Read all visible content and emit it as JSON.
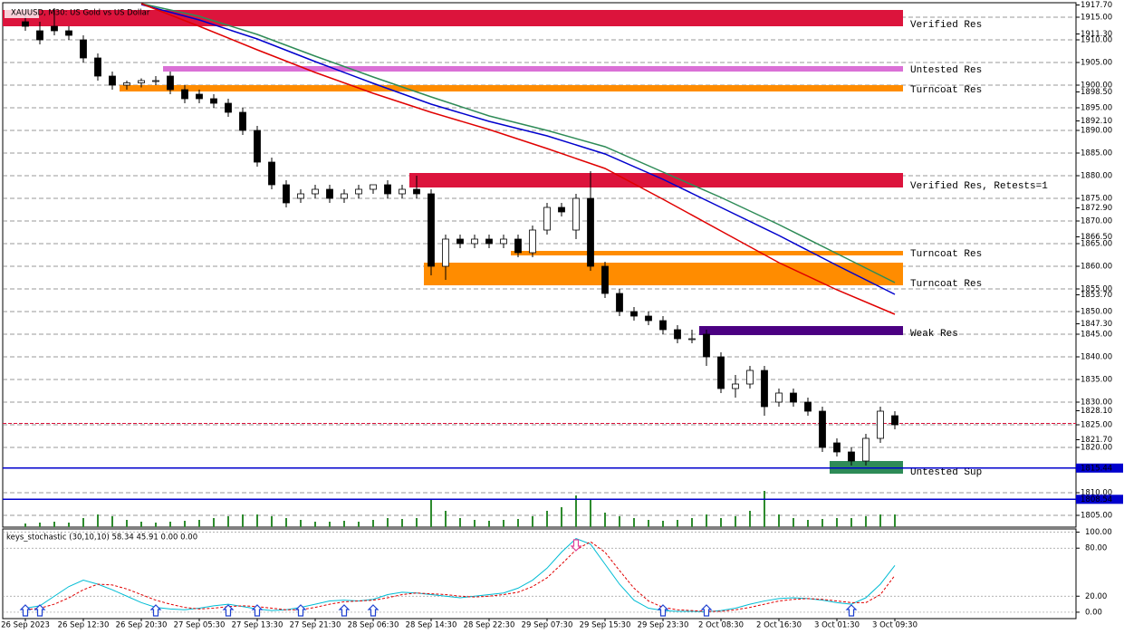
{
  "chart_data": [
    {
      "type": "candlestick",
      "title": "XAUUSD, M30:  US Gold vs US Dollar",
      "categories": [
        "26 Sep 2023",
        null,
        null,
        null,
        "26 Sep 12:30",
        null,
        null,
        null,
        "26 Sep 20:30",
        null,
        null,
        null,
        "27 Sep 05:30",
        null,
        null,
        null,
        "27 Sep 13:30",
        null,
        null,
        null,
        "27 Sep 21:30",
        null,
        null,
        null,
        "28 Sep 06:30",
        null,
        null,
        null,
        "28 Sep 14:30",
        null,
        null,
        null,
        "28 Sep 22:30",
        null,
        null,
        null,
        "29 Sep 07:30",
        null,
        null,
        null,
        "29 Sep 15:30",
        null,
        null,
        null,
        "29 Sep 23:30",
        null,
        null,
        null,
        "2 Oct 08:30",
        null,
        null,
        null,
        "2 Oct 16:30",
        null,
        null,
        null,
        "3 Oct 01:30",
        null,
        null,
        null,
        "3 Oct 09:30"
      ],
      "open": [
        1914,
        1912,
        1913,
        1912,
        1910,
        1906,
        1902,
        1900,
        1900.5,
        1901,
        1902,
        1899,
        1898,
        1897,
        1896,
        1894,
        1890,
        1883,
        1878,
        1875,
        1876,
        1877,
        1875,
        1876,
        1877,
        1878,
        1876,
        1877,
        1876,
        1860,
        1866,
        1865,
        1866,
        1865,
        1866,
        1863,
        1868,
        1873,
        1868,
        1875,
        1860,
        1854,
        1850,
        1849,
        1848,
        1846,
        1844,
        1845,
        1840,
        1833,
        1834,
        1837,
        1830,
        1832,
        1830,
        1828,
        1821,
        1819,
        1817,
        1822,
        1827
      ],
      "high": [
        1916,
        1914,
        1917,
        1913,
        1911,
        1907,
        1903,
        1901,
        1901.5,
        1902,
        1903,
        1900,
        1899,
        1898,
        1897,
        1895,
        1891,
        1884,
        1879,
        1877,
        1878,
        1878,
        1877,
        1878,
        1878,
        1879,
        1878,
        1880,
        1877,
        1867,
        1867,
        1867,
        1867,
        1867,
        1867,
        1869,
        1874,
        1874,
        1876,
        1881,
        1861,
        1855,
        1851,
        1850,
        1849,
        1847,
        1846,
        1846,
        1841,
        1836,
        1838,
        1838,
        1833,
        1833,
        1831,
        1829,
        1822,
        1820,
        1823,
        1829,
        1828
      ],
      "low": [
        1912,
        1909,
        1911,
        1910,
        1905,
        1901,
        1899,
        1899,
        1899.5,
        1900,
        1898,
        1896,
        1896,
        1895,
        1893,
        1889,
        1882,
        1877,
        1873,
        1874,
        1875,
        1874,
        1874,
        1875,
        1876,
        1875,
        1875,
        1875,
        1858,
        1857,
        1864,
        1864,
        1864,
        1864,
        1862,
        1862,
        1867,
        1871,
        1866,
        1859,
        1853,
        1849,
        1848,
        1847,
        1845,
        1843,
        1843,
        1838,
        1832,
        1831,
        1833,
        1827,
        1829,
        1829,
        1827,
        1819,
        1818,
        1816,
        1816,
        1821,
        1824
      ],
      "close": [
        1913,
        1910,
        1912,
        1911,
        1906,
        1902,
        1900,
        1900.5,
        1901,
        1901,
        1899,
        1897,
        1897,
        1896,
        1894,
        1890,
        1883,
        1878,
        1874,
        1876,
        1877,
        1875,
        1876,
        1877,
        1878,
        1876,
        1877,
        1876,
        1860,
        1866,
        1865,
        1866,
        1865,
        1866,
        1863,
        1868,
        1873,
        1872,
        1875,
        1860,
        1854,
        1850,
        1849,
        1848,
        1846,
        1844,
        1844,
        1840,
        1833,
        1834,
        1837,
        1829,
        1832,
        1830,
        1828,
        1820,
        1819,
        1817,
        1822,
        1828,
        1825
      ],
      "ylim": [
        1802.4,
        1918.2
      ],
      "yticks": [
        {
          "value": 1915,
          "label": "1915.00"
        },
        {
          "value": 1910,
          "label": "1910.00"
        },
        {
          "value": 1905,
          "label": "1905.00"
        },
        {
          "value": 1900,
          "label": "1900.00"
        },
        {
          "value": 1895,
          "label": "1895.00"
        },
        {
          "value": 1890,
          "label": "1890.00"
        },
        {
          "value": 1885,
          "label": "1885.00"
        },
        {
          "value": 1880,
          "label": "1880.00"
        },
        {
          "value": 1875,
          "label": "1875.00"
        },
        {
          "value": 1870,
          "label": "1870.00"
        },
        {
          "value": 1865,
          "label": "1865.00"
        },
        {
          "value": 1860,
          "label": "1860.00"
        },
        {
          "value": 1855,
          "label": "1855.00"
        },
        {
          "value": 1850,
          "label": "1850.00"
        },
        {
          "value": 1845,
          "label": "1845.00"
        },
        {
          "value": 1840,
          "label": "1840.00"
        },
        {
          "value": 1835,
          "label": "1835.00"
        },
        {
          "value": 1830,
          "label": "1830.00"
        },
        {
          "value": 1825,
          "label": "1825.00"
        },
        {
          "value": 1820,
          "label": "1820.00"
        },
        {
          "value": 1810,
          "label": "1810.00"
        },
        {
          "value": 1805,
          "label": "1805.00"
        }
      ],
      "price_labels": [
        {
          "value": 1917.7,
          "label": "1917.70"
        },
        {
          "value": 1911.3,
          "label": "1911.30"
        },
        {
          "value": 1898.5,
          "label": "1898.50"
        },
        {
          "value": 1892.1,
          "label": "1892.10"
        },
        {
          "value": 1872.9,
          "label": "1872.90"
        },
        {
          "value": 1866.5,
          "label": "1866.50"
        },
        {
          "value": 1853.7,
          "label": "1853.70"
        },
        {
          "value": 1847.3,
          "label": "1847.30"
        },
        {
          "value": 1828.1,
          "label": "1828.10"
        },
        {
          "value": 1821.7,
          "label": "1821.70"
        }
      ],
      "grid": true,
      "zones": [
        {
          "label": "Verified Res",
          "top": 1916.6,
          "bottom": 1913.0,
          "start": -1.5,
          "color": "#dc143c"
        },
        {
          "label": "Untested Res",
          "top": 1904.2,
          "bottom": 1903.0,
          "start": 10,
          "color": "#da70d6"
        },
        {
          "label": "Turncoat Res",
          "top": 1900.0,
          "bottom": 1898.6,
          "start": 7,
          "color": "#ff8c00"
        },
        {
          "label": "Verified Res, Retests=1",
          "top": 1880.6,
          "bottom": 1877.4,
          "start": 27,
          "color": "#dc143c"
        },
        {
          "label": "Turncoat Res",
          "top": 1863.4,
          "bottom": 1862.4,
          "start": 34,
          "color": "#ff8c00"
        },
        {
          "label": "Turncoat Res",
          "top": 1860.8,
          "bottom": 1855.8,
          "start": 28,
          "color": "#ff8c00"
        },
        {
          "label": "Weak Res",
          "top": 1846.8,
          "bottom": 1844.8,
          "start": 47,
          "color": "#4b0082"
        },
        {
          "label": "Untested Sup",
          "top": 1817.0,
          "bottom": 1814.2,
          "start": 56,
          "color": "#2e8b57"
        }
      ],
      "levels": [
        {
          "value": 1825.3,
          "color": "#dc143c"
        },
        {
          "value": 1815.44,
          "color": "#0000cd"
        },
        {
          "value": 1808.54,
          "color": "#0000cd"
        }
      ],
      "moving_averages": [
        {
          "color": "#2e8b57",
          "x": [
            8,
            12,
            16,
            20,
            24,
            28,
            32,
            36,
            40,
            44,
            48,
            52,
            56,
            60
          ],
          "values": [
            1918,
            1915.2,
            1911.2,
            1906.4,
            1901.8,
            1897.4,
            1893.2,
            1890,
            1886.4,
            1880.8,
            1875.2,
            1869.2,
            1862.8,
            1856.4
          ]
        },
        {
          "color": "#0000cd",
          "x": [
            8,
            12,
            16,
            20,
            24,
            28,
            32,
            36,
            40,
            44,
            48,
            52,
            56,
            60
          ],
          "values": [
            1917.8,
            1914.4,
            1910.2,
            1905.2,
            1900.4,
            1895.8,
            1892,
            1888.8,
            1884.8,
            1879.2,
            1873,
            1866.8,
            1860.2,
            1853.8
          ]
        },
        {
          "color": "#e00000",
          "x": [
            8,
            12,
            16,
            20,
            24,
            28,
            32,
            36,
            40,
            44,
            48,
            52,
            56,
            60
          ],
          "values": [
            1918,
            1913,
            1907.8,
            1902.8,
            1898.2,
            1894,
            1890.2,
            1886,
            1881.6,
            1874.8,
            1867.8,
            1860.8,
            1854.8,
            1849.4
          ]
        }
      ],
      "volume": {
        "color": "#2e8b2e",
        "values": [
          4,
          5,
          6,
          5,
          10,
          14,
          12,
          8,
          6,
          5,
          6,
          7,
          8,
          10,
          12,
          14,
          14,
          12,
          10,
          8,
          6,
          6,
          7,
          6,
          8,
          10,
          9,
          10,
          30,
          18,
          10,
          8,
          7,
          8,
          9,
          12,
          18,
          22,
          35,
          30,
          16,
          12,
          10,
          8,
          7,
          8,
          10,
          14,
          10,
          12,
          18,
          40,
          14,
          10,
          8,
          9,
          10,
          10,
          12,
          14,
          14
        ]
      }
    },
    {
      "type": "line",
      "title": "keys_stochastic (30,10,10) 58.34 45.91 0.00 0.00",
      "series": [
        {
          "color": "#00bcd4",
          "values": [
            5,
            8,
            20,
            32,
            40,
            35,
            28,
            20,
            12,
            6,
            4,
            3,
            5,
            8,
            10,
            7,
            4,
            2,
            3,
            6,
            10,
            14,
            15,
            14,
            16,
            22,
            25,
            24,
            22,
            20,
            18,
            20,
            22,
            24,
            30,
            40,
            55,
            75,
            92,
            85,
            60,
            35,
            15,
            5,
            2,
            1,
            1,
            0.5,
            2,
            5,
            10,
            14,
            17,
            18,
            17,
            15,
            12,
            10,
            18,
            35,
            58.34
          ]
        },
        {
          "color": "#e00000",
          "dashed": true,
          "values": [
            3,
            5,
            10,
            18,
            28,
            35,
            34,
            29,
            22,
            15,
            10,
            6,
            4,
            5,
            7,
            8,
            7,
            5,
            3,
            3,
            6,
            10,
            13,
            14,
            15,
            18,
            22,
            24,
            23,
            22,
            20,
            19,
            20,
            22,
            25,
            32,
            43,
            60,
            78,
            88,
            75,
            52,
            30,
            14,
            6,
            3,
            2,
            1,
            1,
            3,
            6,
            10,
            14,
            16,
            17,
            16,
            14,
            12,
            12,
            22,
            45.91
          ]
        }
      ],
      "ylim": [
        -8,
        104
      ],
      "yticks": [
        {
          "value": 100,
          "label": "100.00"
        },
        {
          "value": 80,
          "label": "80.00"
        },
        {
          "value": 20,
          "label": "20.00"
        },
        {
          "value": 0,
          "label": "0.00"
        }
      ],
      "signals": {
        "up": [
          0,
          1,
          9,
          14,
          16,
          19,
          22,
          24,
          44,
          47,
          57
        ],
        "down": [
          38
        ]
      }
    }
  ]
}
